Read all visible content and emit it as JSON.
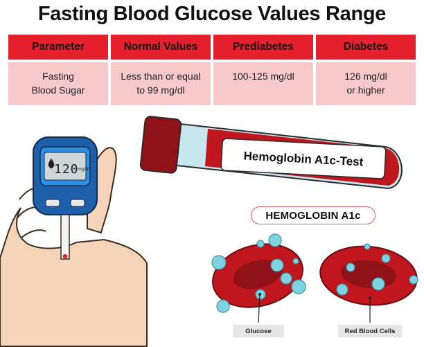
{
  "title": "Fasting Blood Glucose Values Range",
  "table": {
    "columns": [
      {
        "header": "Parameter",
        "value_lines": [
          "Fasting",
          "Blood Sugar"
        ]
      },
      {
        "header": "Normal Values",
        "value_lines": [
          "Less than or equal",
          "to 99 mg/dl"
        ]
      },
      {
        "header": "Prediabetes",
        "value_lines": [
          "100-125 mg/dl"
        ]
      },
      {
        "header": "Diabetes",
        "value_lines": [
          "126 mg/dl",
          "or higher"
        ]
      }
    ]
  },
  "tube_label": "Hemoglobin A1c-Test",
  "section_badge": "HEMOGLOBIN A1c",
  "meter": {
    "reading": "120",
    "unit": "mg/dl"
  },
  "labels": {
    "glucose": "Glucose",
    "red_blood_cells": "Red Blood Cells"
  },
  "colors": {
    "header_red": "#e3202c",
    "cell_pink": "#f7c9cb",
    "blood_red": "#c0161d",
    "glucose_blue": "#7fd3e0",
    "meter_blue": "#1d5fa8",
    "skin": "#f6d4b8"
  }
}
